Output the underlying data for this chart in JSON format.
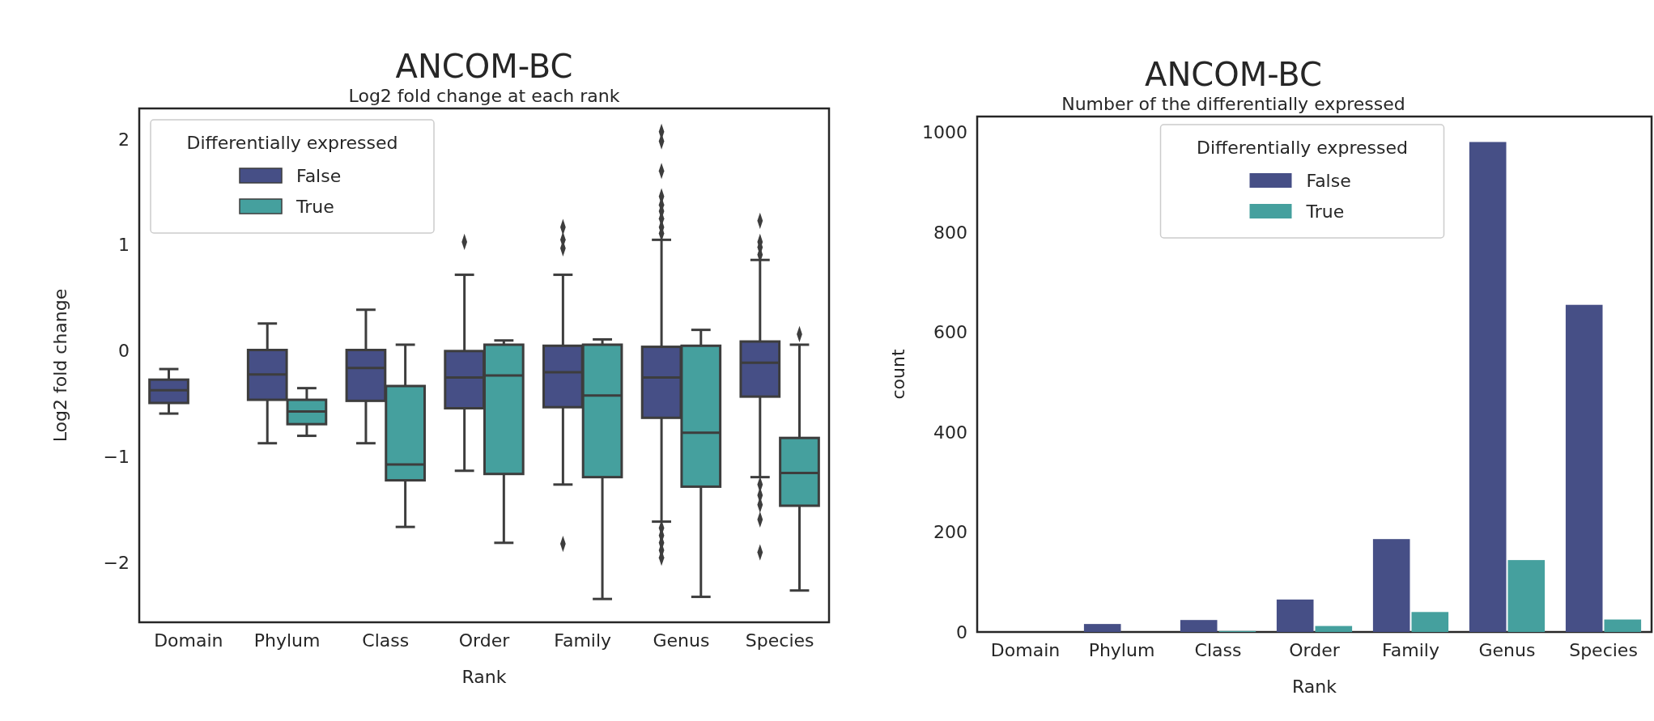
{
  "chart_data": [
    {
      "type": "box",
      "title": "ANCOM-BC",
      "subtitle": "Log2 fold change at each rank",
      "xlabel": "Rank",
      "ylabel": "Log2 fold change",
      "legend_title": "Differentially expressed",
      "legend": "top left",
      "marker": "diamond",
      "grid": false,
      "categories": [
        "Domain",
        "Phylum",
        "Class",
        "Order",
        "Family",
        "Genus",
        "Species"
      ],
      "ylim": [
        -2.56,
        2.29
      ],
      "yticks": [
        {
          "value": -2,
          "label": "−2"
        },
        {
          "value": -1,
          "label": "−1"
        },
        0,
        1,
        2
      ],
      "series": [
        {
          "name": "False",
          "color": "#464f86",
          "boxes": [
            {
              "low": -0.59,
              "q1": -0.49,
              "median": -0.37,
              "q3": -0.27,
              "high": -0.17
            },
            {
              "low": -0.87,
              "q1": -0.46,
              "median": -0.22,
              "q3": 0.01,
              "high": 0.26
            },
            {
              "low": -0.87,
              "q1": -0.47,
              "median": -0.16,
              "q3": 0.01,
              "high": 0.39
            },
            {
              "low": -1.13,
              "q1": -0.54,
              "median": -0.25,
              "q3": 0,
              "high": 0.72,
              "outliers": [
                1.03
              ]
            },
            {
              "low": -1.26,
              "q1": -0.53,
              "median": -0.2,
              "q3": 0.05,
              "high": 0.72,
              "outliers": [
                1.17,
                1.05,
                0.97,
                -1.82
              ]
            },
            {
              "low": -1.61,
              "q1": -0.63,
              "median": -0.25,
              "q3": 0.04,
              "high": 1.05,
              "outliers": [
                2.07,
                1.98,
                1.7,
                1.46,
                1.38,
                1.32,
                1.25,
                1.17,
                1.11,
                -1.67,
                -1.74,
                -1.81,
                -1.88,
                -1.95
              ]
            },
            {
              "low": -1.19,
              "q1": -0.43,
              "median": -0.11,
              "q3": 0.09,
              "high": 0.86,
              "outliers": [
                1.23,
                1.03,
                0.98,
                0.91,
                -1.26,
                -1.36,
                -1.45,
                -1.59,
                -1.9
              ]
            }
          ]
        },
        {
          "name": "True",
          "color": "#45a09e",
          "boxes": [
            null,
            {
              "low": -0.8,
              "q1": -0.69,
              "median": -0.57,
              "q3": -0.46,
              "high": -0.35
            },
            {
              "low": -1.66,
              "q1": -1.22,
              "median": -1.07,
              "q3": -0.33,
              "high": 0.06
            },
            {
              "low": -1.81,
              "q1": -1.16,
              "median": -0.23,
              "q3": 0.06,
              "high": 0.1
            },
            {
              "low": -2.34,
              "q1": -1.19,
              "median": -0.42,
              "q3": 0.06,
              "high": 0.11
            },
            {
              "low": -2.32,
              "q1": -1.28,
              "median": -0.77,
              "q3": 0.05,
              "high": 0.2
            },
            {
              "low": -2.26,
              "q1": -1.46,
              "median": -1.15,
              "q3": -0.82,
              "high": 0.06,
              "outliers": [
                0.16
              ]
            }
          ]
        }
      ]
    },
    {
      "type": "bar",
      "title": "ANCOM-BC",
      "subtitle": "Number of the differentially expressed",
      "xlabel": "Rank",
      "ylabel": "count",
      "legend_title": "Differentially expressed",
      "legend": "top",
      "grid": false,
      "categories": [
        "Domain",
        "Phylum",
        "Class",
        "Order",
        "Family",
        "Genus",
        "Species"
      ],
      "ylim": [
        0,
        1032
      ],
      "yticks": [
        0,
        200,
        400,
        600,
        800,
        1000
      ],
      "series": [
        {
          "name": "False",
          "color": "#464f86",
          "values": [
            0,
            16,
            24,
            65,
            186,
            981,
            655
          ]
        },
        {
          "name": "True",
          "color": "#45a09e",
          "values": [
            0,
            0,
            2,
            12,
            40,
            144,
            25
          ]
        }
      ]
    }
  ]
}
